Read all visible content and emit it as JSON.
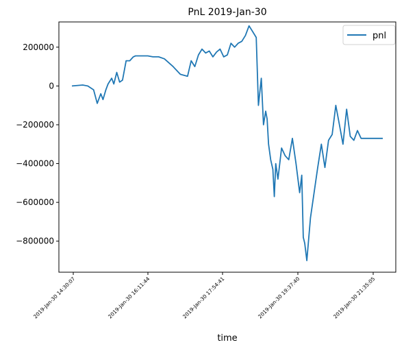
{
  "chart_data": {
    "type": "line",
    "title": "PnL 2019-Jan-30",
    "xlabel": "time",
    "ylabel": "",
    "legend": {
      "position": "top-right",
      "entries": [
        "pnl"
      ]
    },
    "grid": false,
    "x_ticks": [
      "2019-Jan-30 14:30:07",
      "2019-Jan-30 16:11:44",
      "2019-Jan-30 17:54:41",
      "2019-Jan-30 19:37:40",
      "2019-Jan-30 21:35:05"
    ],
    "y_ticks": [
      "200000",
      "0",
      "−200000",
      "−400000",
      "−600000",
      "−800000"
    ],
    "ylim": [
      -960000,
      330000
    ],
    "series": [
      {
        "name": "pnl",
        "color": "#1f77b4",
        "x": [
          "14:30",
          "14:45",
          "14:52",
          "15:00",
          "15:05",
          "15:10",
          "15:13",
          "15:17",
          "15:20",
          "15:25",
          "15:28",
          "15:32",
          "15:36",
          "15:40",
          "15:45",
          "15:50",
          "15:55",
          "15:58",
          "16:00",
          "16:05",
          "16:10",
          "16:15",
          "16:22",
          "16:30",
          "16:38",
          "16:50",
          "17:00",
          "17:10",
          "17:15",
          "17:20",
          "17:25",
          "17:30",
          "17:35",
          "17:40",
          "17:45",
          "17:50",
          "17:55",
          "18:00",
          "18:05",
          "18:10",
          "18:15",
          "18:20",
          "18:25",
          "18:30",
          "18:35",
          "18:40",
          "18:45",
          "18:48",
          "18:52",
          "18:55",
          "18:58",
          "19:00",
          "19:02",
          "19:05",
          "19:08",
          "19:10",
          "19:12",
          "19:15",
          "19:20",
          "19:25",
          "19:30",
          "19:35",
          "19:40",
          "19:45",
          "19:48",
          "19:50",
          "19:52",
          "19:55",
          "20:00",
          "20:05",
          "20:10",
          "20:15",
          "20:20",
          "20:25",
          "20:30",
          "20:35",
          "20:40",
          "20:45",
          "20:50",
          "20:55",
          "21:00",
          "21:05",
          "21:10",
          "21:15",
          "21:20",
          "21:25",
          "21:30",
          "21:35",
          "21:40"
        ],
        "values": [
          0,
          5000,
          0,
          -20000,
          -90000,
          -40000,
          -70000,
          -20000,
          10000,
          40000,
          10000,
          70000,
          20000,
          30000,
          130000,
          130000,
          150000,
          155000,
          155000,
          155000,
          155000,
          155000,
          150000,
          150000,
          140000,
          100000,
          60000,
          50000,
          130000,
          100000,
          160000,
          190000,
          170000,
          180000,
          150000,
          175000,
          190000,
          150000,
          160000,
          220000,
          200000,
          220000,
          230000,
          260000,
          310000,
          280000,
          250000,
          -100000,
          40000,
          -200000,
          -130000,
          -170000,
          -300000,
          -380000,
          -430000,
          -570000,
          -400000,
          -480000,
          -320000,
          -360000,
          -380000,
          -270000,
          -400000,
          -550000,
          -460000,
          -780000,
          -810000,
          -900000,
          -680000,
          -550000,
          -420000,
          -300000,
          -420000,
          -280000,
          -250000,
          -100000,
          -200000,
          -300000,
          -120000,
          -260000,
          -280000,
          -230000,
          -270000,
          -270000,
          -270000,
          -270000,
          -270000,
          -270000,
          -270000
        ]
      }
    ]
  }
}
